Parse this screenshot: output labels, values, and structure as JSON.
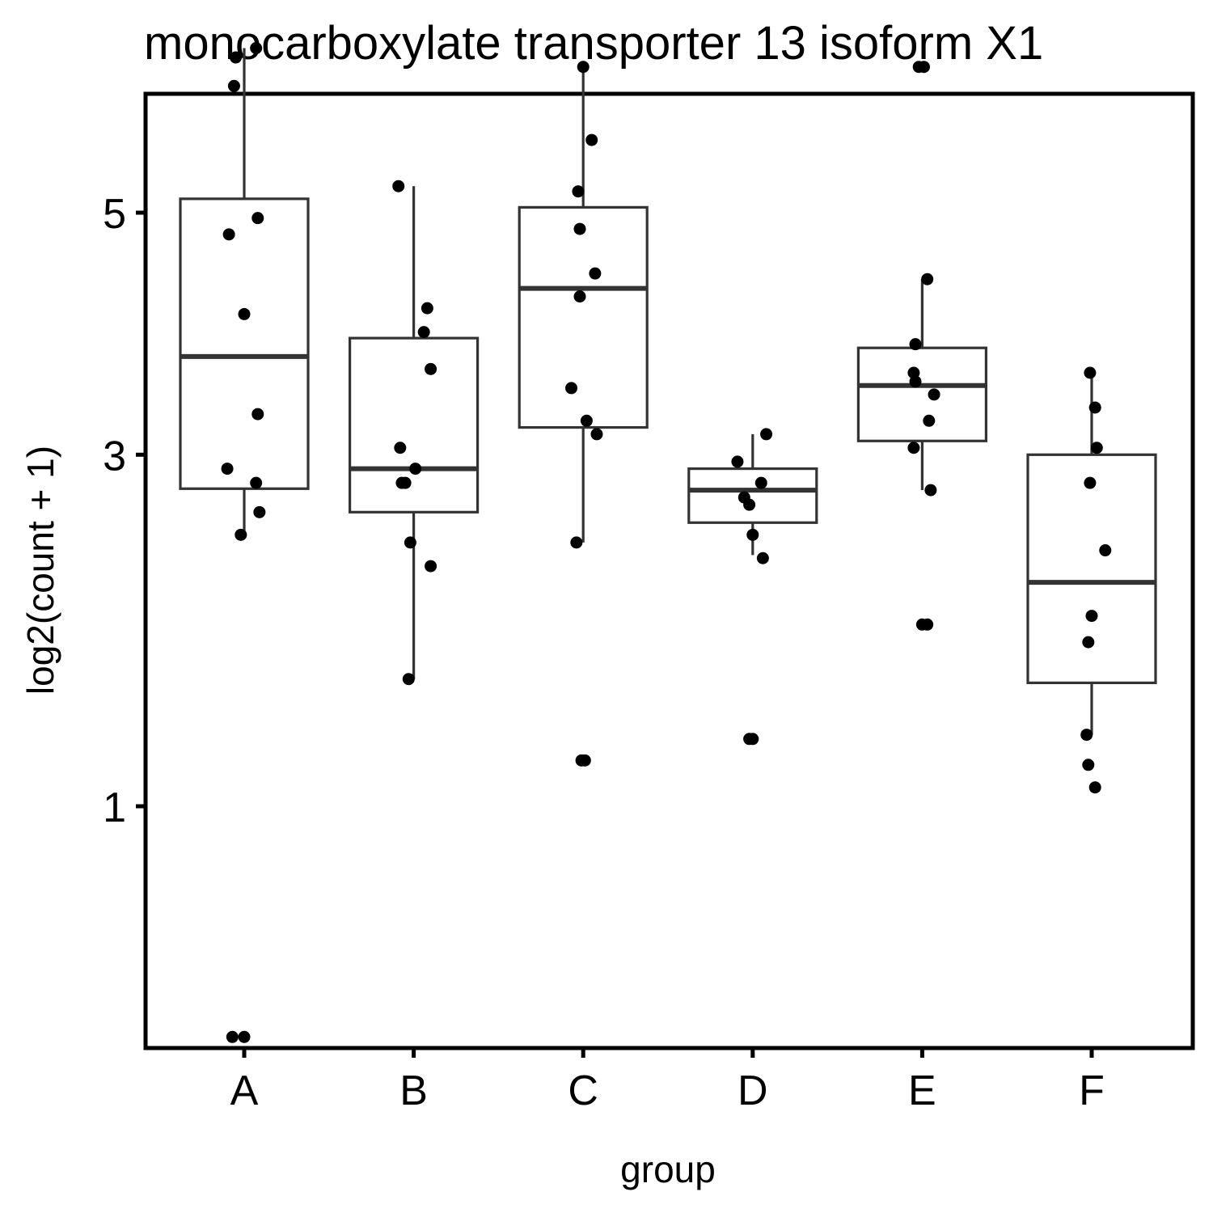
{
  "chart_data": {
    "type": "box",
    "title": "monocarboxylate transporter 13 isoform X1",
    "xlabel": "group",
    "ylabel": "log2(count + 1)",
    "y_scale": "sqrt",
    "ylim": [
      0.08,
      7.2
    ],
    "yticks": [
      1,
      3,
      5
    ],
    "categories": [
      "A",
      "B",
      "C",
      "D",
      "E",
      "F"
    ],
    "boxes": [
      {
        "group": "A",
        "whisker_low": 2.45,
        "q1": 2.76,
        "median": 3.75,
        "q3": 5.13,
        "whisker_high": 6.65
      },
      {
        "group": "B",
        "whisker_low": 1.6,
        "q1": 2.6,
        "median": 2.9,
        "q3": 3.9,
        "whisker_high": 5.25
      },
      {
        "group": "C",
        "whisker_low": 2.4,
        "q1": 3.2,
        "median": 4.32,
        "q3": 5.05,
        "whisker_high": 6.45
      },
      {
        "group": "D",
        "whisker_low": 2.32,
        "q1": 2.53,
        "median": 2.75,
        "q3": 2.9,
        "whisker_high": 3.15
      },
      {
        "group": "E",
        "whisker_low": 2.75,
        "q1": 3.1,
        "median": 3.52,
        "q3": 3.82,
        "whisker_high": 4.4
      },
      {
        "group": "F",
        "whisker_low": 1.32,
        "q1": 1.58,
        "median": 2.15,
        "q3": 3.0,
        "whisker_high": 3.62
      }
    ],
    "points": [
      {
        "group": "A",
        "y": [
          6.65,
          6.55,
          6.25,
          4.95,
          4.8,
          4.1,
          3.3,
          2.9,
          2.8,
          2.6,
          2.45,
          0.27,
          0.27
        ],
        "jitter": [
          0.07,
          -0.05,
          -0.06,
          0.08,
          -0.09,
          0.0,
          0.08,
          -0.1,
          0.07,
          0.09,
          -0.02,
          -0.07,
          0.0
        ]
      },
      {
        "group": "B",
        "y": [
          5.25,
          4.15,
          3.95,
          3.65,
          3.05,
          2.9,
          2.8,
          2.8,
          2.4,
          2.25,
          1.6
        ],
        "jitter": [
          -0.09,
          0.08,
          0.06,
          0.1,
          -0.08,
          0.01,
          -0.07,
          -0.05,
          -0.02,
          0.1,
          -0.03
        ]
      },
      {
        "group": "C",
        "y": [
          6.45,
          5.7,
          5.2,
          4.85,
          4.45,
          4.25,
          3.5,
          3.25,
          3.15,
          2.4,
          1.2,
          1.2
        ],
        "jitter": [
          0.0,
          0.05,
          -0.03,
          -0.02,
          0.07,
          -0.02,
          -0.07,
          0.02,
          0.08,
          -0.04,
          -0.01,
          0.01
        ]
      },
      {
        "group": "D",
        "y": [
          3.15,
          2.95,
          2.8,
          2.7,
          2.65,
          2.45,
          2.3,
          1.3,
          1.3
        ],
        "jitter": [
          0.08,
          -0.09,
          0.05,
          -0.05,
          -0.02,
          0.0,
          0.06,
          -0.02,
          0.0
        ]
      },
      {
        "group": "E",
        "y": [
          6.45,
          6.45,
          4.4,
          3.85,
          3.62,
          3.55,
          3.45,
          3.25,
          3.05,
          2.75,
          1.9,
          1.9
        ],
        "jitter": [
          -0.02,
          0.01,
          0.03,
          -0.04,
          -0.05,
          -0.04,
          0.07,
          0.04,
          -0.05,
          0.05,
          0.0,
          0.03
        ]
      },
      {
        "group": "F",
        "y": [
          3.62,
          3.35,
          3.05,
          2.8,
          2.35,
          1.95,
          1.8,
          1.32,
          1.18,
          1.08
        ],
        "jitter": [
          -0.01,
          0.02,
          0.03,
          -0.01,
          0.08,
          0.0,
          -0.02,
          -0.03,
          -0.02,
          0.02
        ]
      }
    ]
  }
}
